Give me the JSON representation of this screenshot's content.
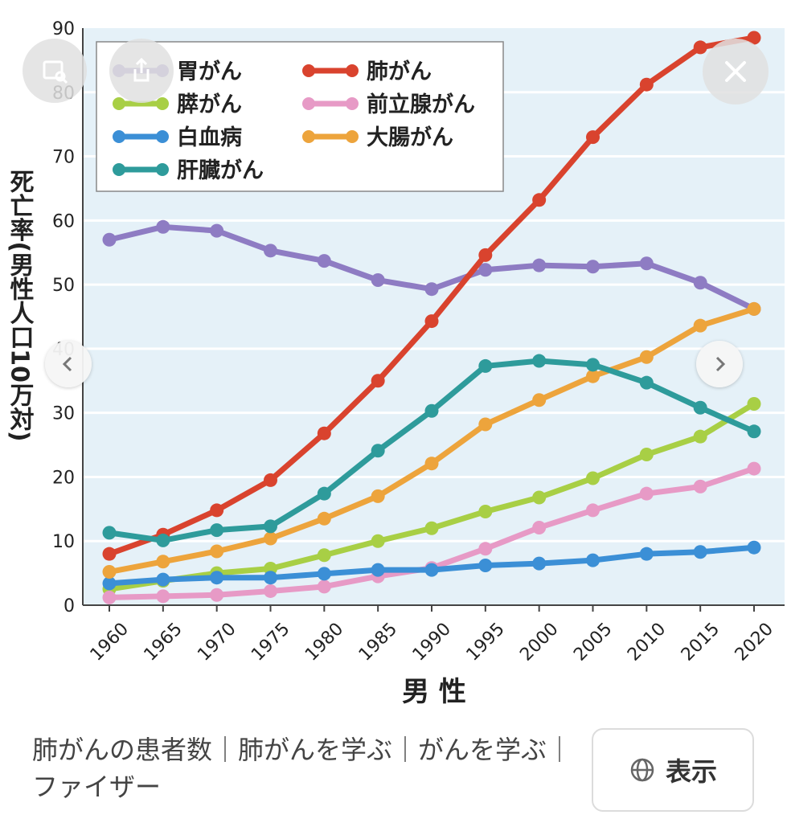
{
  "chart_data": {
    "type": "line",
    "title": "",
    "xlabel": "男 性",
    "ylabel": "死亡率(男性人口10万対)",
    "ylim": [
      0,
      90
    ],
    "yticks": [
      0,
      10,
      20,
      30,
      40,
      50,
      60,
      70,
      80,
      90
    ],
    "x": [
      1960,
      1965,
      1970,
      1975,
      1980,
      1985,
      1990,
      1995,
      2000,
      2005,
      2010,
      2015,
      2020
    ],
    "grid": true,
    "legend_position": "top-left",
    "series": [
      {
        "name": "胃がん",
        "color": "#8e7cc3",
        "values": [
          57,
          59,
          58.4,
          55.3,
          53.7,
          50.7,
          49.3,
          52.3,
          53,
          52.8,
          53.3,
          50.3,
          46.2
        ]
      },
      {
        "name": "肺がん",
        "color": "#d9432e",
        "values": [
          8,
          11,
          14.8,
          19.5,
          26.8,
          35,
          44.3,
          54.6,
          63.2,
          73,
          81.2,
          87,
          88.5
        ]
      },
      {
        "name": "膵がん",
        "color": "#a8cf45",
        "values": [
          2.5,
          3.8,
          5,
          5.7,
          7.8,
          10,
          12,
          14.6,
          16.8,
          19.8,
          23.5,
          26.3,
          31.4
        ]
      },
      {
        "name": "前立腺がん",
        "color": "#e79ac6",
        "values": [
          1.2,
          1.4,
          1.6,
          2.2,
          2.9,
          4.5,
          5.8,
          8.8,
          12.1,
          14.8,
          17.4,
          18.5,
          21.3
        ]
      },
      {
        "name": "白血病",
        "color": "#3b8fd6",
        "values": [
          3.4,
          4,
          4.3,
          4.3,
          4.9,
          5.5,
          5.5,
          6.2,
          6.5,
          7,
          8,
          8.3,
          9
        ]
      },
      {
        "name": "大腸がん",
        "color": "#eda43c",
        "values": [
          5.2,
          6.8,
          8.4,
          10.4,
          13.5,
          17,
          22.1,
          28.2,
          32,
          35.7,
          38.7,
          43.6,
          46.2
        ]
      },
      {
        "name": "肝臓がん",
        "color": "#2e9b9b",
        "values": [
          11.3,
          10.1,
          11.7,
          12.3,
          17.4,
          24.1,
          30.3,
          37.3,
          38.1,
          37.5,
          34.7,
          30.8,
          27.1
        ]
      }
    ]
  },
  "overlay": {
    "image_search_icon": "image-search-icon",
    "share_icon": "share-icon",
    "close_icon": "close-icon",
    "prev_icon": "chevron-left-icon",
    "next_icon": "chevron-right-icon"
  },
  "caption": "肺がんの患者数｜肺がんを学ぶ｜がんを学ぶ｜ファイザー",
  "view_button": {
    "label": "表示",
    "icon": "globe-icon"
  }
}
